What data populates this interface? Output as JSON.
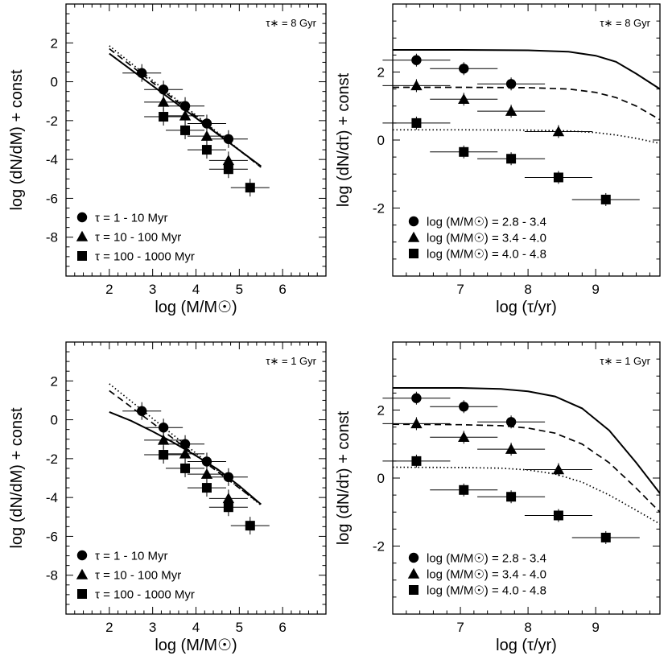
{
  "chart_data": [
    {
      "type": "scatter",
      "panel": "top-left",
      "annotation": "τ∗ = 8 Gyr",
      "xlabel": "log (M/M☉)",
      "ylabel": "log (dN/dM) + const",
      "xlim": [
        1,
        7
      ],
      "ylim": [
        -10,
        4
      ],
      "xticks": [
        "2",
        "3",
        "4",
        "5",
        "6"
      ],
      "yticks": [
        "2",
        "0",
        "-2",
        "-4",
        "-6",
        "-8"
      ],
      "series": [
        {
          "name": "τ = 1 - 10 Myr",
          "marker": "circle",
          "x": [
            2.75,
            3.25,
            3.75,
            4.25,
            4.75
          ],
          "y": [
            0.45,
            -0.4,
            -1.25,
            -2.15,
            -2.95
          ]
        },
        {
          "name": "τ = 10 - 100 Myr",
          "marker": "triangle",
          "x": [
            3.25,
            3.75,
            4.25,
            4.75
          ],
          "y": [
            -1.05,
            -1.75,
            -2.8,
            -4.05
          ]
        },
        {
          "name": "τ = 100 - 1000 Myr",
          "marker": "square",
          "x": [
            3.25,
            3.75,
            4.25,
            4.75,
            5.25
          ],
          "y": [
            -1.8,
            -2.5,
            -3.5,
            -4.5,
            -5.45
          ]
        }
      ],
      "model_lines": [
        {
          "style": "solid",
          "x": [
            2.0,
            5.5
          ],
          "y": [
            1.45,
            -4.35
          ]
        },
        {
          "style": "dashed",
          "x": [
            2.0,
            5.5
          ],
          "y": [
            1.7,
            -4.4
          ]
        },
        {
          "style": "dotted",
          "x": [
            2.0,
            5.5
          ],
          "y": [
            1.85,
            -4.4
          ]
        }
      ]
    },
    {
      "type": "scatter",
      "panel": "top-right",
      "annotation": "τ∗ = 8 Gyr",
      "xlabel": "log (τ/yr)",
      "ylabel": "log (dN/dτ) + const",
      "xlim": [
        6.0,
        9.95
      ],
      "ylim": [
        -4,
        4
      ],
      "xticks": [
        "7",
        "8",
        "9"
      ],
      "yticks": [
        "2",
        "0",
        "-2"
      ],
      "series": [
        {
          "name": "log (M/M☉) = 2.8 - 3.4",
          "marker": "circle",
          "x": [
            6.35,
            7.05,
            7.75
          ],
          "y": [
            2.35,
            2.1,
            1.65
          ]
        },
        {
          "name": "log (M/M☉) = 3.4 - 4.0",
          "marker": "triangle",
          "x": [
            6.35,
            7.05,
            7.75,
            8.45
          ],
          "y": [
            1.6,
            1.2,
            0.85,
            0.25
          ]
        },
        {
          "name": "log (M/M☉) = 4.0 - 4.8",
          "marker": "square",
          "x": [
            6.35,
            7.05,
            7.75,
            8.45,
            9.15
          ],
          "y": [
            0.5,
            -0.35,
            -0.55,
            -1.1,
            -1.75
          ]
        }
      ],
      "model_lines": [
        {
          "style": "solid",
          "x": [
            6.0,
            7.0,
            8.0,
            8.6,
            9.0,
            9.3,
            9.6,
            9.95
          ],
          "y": [
            2.65,
            2.65,
            2.64,
            2.6,
            2.48,
            2.3,
            1.95,
            1.5
          ]
        },
        {
          "style": "dashed",
          "x": [
            6.0,
            7.0,
            8.0,
            8.6,
            9.0,
            9.3,
            9.6,
            9.95
          ],
          "y": [
            1.55,
            1.55,
            1.54,
            1.5,
            1.4,
            1.25,
            1.0,
            0.6
          ]
        },
        {
          "style": "dotted",
          "x": [
            6.0,
            7.0,
            8.0,
            8.6,
            9.0,
            9.3,
            9.6,
            9.95
          ],
          "y": [
            0.3,
            0.3,
            0.29,
            0.27,
            0.22,
            0.15,
            0.05,
            -0.1
          ]
        }
      ]
    },
    {
      "type": "scatter",
      "panel": "bottom-left",
      "annotation": "τ∗ = 1 Gyr",
      "xlabel": "log (M/M☉)",
      "ylabel": "log (dN/dM) + const",
      "xlim": [
        1,
        7
      ],
      "ylim": [
        -10,
        4
      ],
      "xticks": [
        "2",
        "3",
        "4",
        "5",
        "6"
      ],
      "yticks": [
        "2",
        "0",
        "-2",
        "-4",
        "-6",
        "-8"
      ],
      "series": [
        {
          "name": "τ = 1 - 10 Myr",
          "marker": "circle",
          "x": [
            2.75,
            3.25,
            3.75,
            4.25,
            4.75
          ],
          "y": [
            0.45,
            -0.4,
            -1.25,
            -2.15,
            -2.95
          ]
        },
        {
          "name": "τ = 10 - 100 Myr",
          "marker": "triangle",
          "x": [
            3.25,
            3.75,
            4.25,
            4.75
          ],
          "y": [
            -1.05,
            -1.75,
            -2.8,
            -4.05
          ]
        },
        {
          "name": "τ = 100 - 1000 Myr",
          "marker": "square",
          "x": [
            3.25,
            3.75,
            4.25,
            4.75,
            5.25
          ],
          "y": [
            -1.8,
            -2.5,
            -3.5,
            -4.5,
            -5.45
          ]
        }
      ],
      "model_lines": [
        {
          "style": "solid",
          "x": [
            2.0,
            2.5,
            3.0,
            3.5,
            4.0,
            4.5,
            5.0,
            5.5
          ],
          "y": [
            0.4,
            -0.05,
            -0.6,
            -1.2,
            -1.85,
            -2.55,
            -3.4,
            -4.35
          ]
        },
        {
          "style": "dashed",
          "x": [
            2.0,
            5.5
          ],
          "y": [
            1.5,
            -4.35
          ]
        },
        {
          "style": "dotted",
          "x": [
            2.0,
            5.5
          ],
          "y": [
            1.85,
            -4.4
          ]
        }
      ]
    },
    {
      "type": "scatter",
      "panel": "bottom-right",
      "annotation": "τ∗ = 1 Gyr",
      "xlabel": "log (τ/yr)",
      "ylabel": "log (dN/dτ) + const",
      "xlim": [
        6.0,
        9.95
      ],
      "ylim": [
        -4,
        4
      ],
      "xticks": [
        "7",
        "8",
        "9"
      ],
      "yticks": [
        "2",
        "0",
        "-2"
      ],
      "series": [
        {
          "name": "log (M/M☉) = 2.8 - 3.4",
          "marker": "circle",
          "x": [
            6.35,
            7.05,
            7.75
          ],
          "y": [
            2.35,
            2.1,
            1.65
          ]
        },
        {
          "name": "log (M/M☉) = 3.4 - 4.0",
          "marker": "triangle",
          "x": [
            6.35,
            7.05,
            7.75,
            8.45
          ],
          "y": [
            1.6,
            1.2,
            0.85,
            0.25
          ]
        },
        {
          "name": "log (M/M☉) = 4.0 - 4.8",
          "marker": "square",
          "x": [
            6.35,
            7.05,
            7.75,
            8.45,
            9.15
          ],
          "y": [
            0.5,
            -0.35,
            -0.55,
            -1.1,
            -1.75
          ]
        }
      ],
      "model_lines": [
        {
          "style": "solid",
          "x": [
            6.0,
            7.0,
            7.6,
            8.0,
            8.4,
            8.8,
            9.2,
            9.6,
            9.95
          ],
          "y": [
            2.65,
            2.65,
            2.62,
            2.55,
            2.4,
            2.05,
            1.4,
            0.45,
            -0.45
          ]
        },
        {
          "style": "dashed",
          "x": [
            6.0,
            7.0,
            7.6,
            8.0,
            8.4,
            8.8,
            9.2,
            9.6,
            9.95
          ],
          "y": [
            1.58,
            1.57,
            1.54,
            1.47,
            1.32,
            1.0,
            0.45,
            -0.3,
            -1.0
          ]
        },
        {
          "style": "dotted",
          "x": [
            6.0,
            7.0,
            7.6,
            8.0,
            8.4,
            8.8,
            9.2,
            9.6,
            9.95
          ],
          "y": [
            0.32,
            0.31,
            0.29,
            0.24,
            0.12,
            -0.12,
            -0.5,
            -0.95,
            -1.35
          ]
        }
      ]
    }
  ]
}
